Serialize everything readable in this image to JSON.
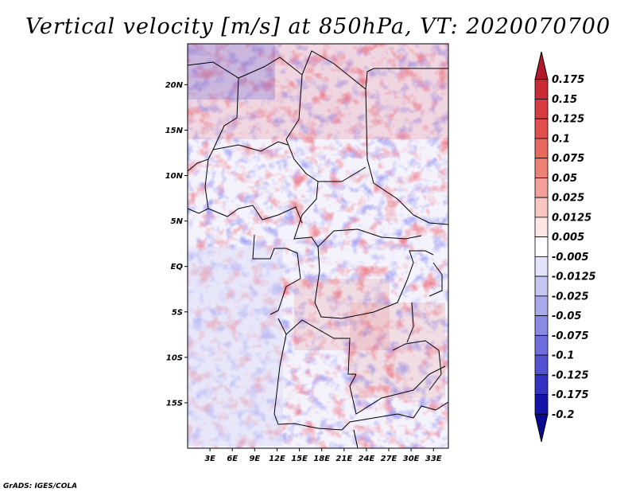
{
  "map": {
    "title": "Vertical velocity [m/s] at 850hPa, VT: 2020070700",
    "lon_labels": [
      "3E",
      "6E",
      "9E",
      "12E",
      "15E",
      "18E",
      "21E",
      "24E",
      "27E",
      "30E",
      "33E"
    ],
    "lon_values": [
      3,
      6,
      9,
      12,
      15,
      18,
      21,
      24,
      27,
      30,
      33
    ],
    "lat_labels": [
      "20N",
      "15N",
      "10N",
      "5N",
      "EQ",
      "5S",
      "10S",
      "15S"
    ],
    "lat_values": [
      20,
      15,
      10,
      5,
      0,
      -5,
      -10,
      -15
    ],
    "lon_range": [
      0,
      35
    ],
    "lat_range": [
      -20,
      24.5
    ],
    "credit": "GrADS: IGES/COLA"
  },
  "colorbar": {
    "labels": [
      "0.175",
      "0.15",
      "0.125",
      "0.1",
      "0.075",
      "0.05",
      "0.025",
      "0.0125",
      "0.005",
      "-0.005",
      "-0.0125",
      "-0.025",
      "-0.05",
      "-0.075",
      "-0.1",
      "-0.125",
      "-0.175",
      "-0.2"
    ],
    "colors": [
      "#b2182b",
      "#c92a33",
      "#d83c40",
      "#e34f4f",
      "#e8675f",
      "#ee8076",
      "#f3a09a",
      "#f9c6c2",
      "#fde6e4",
      "#ffffff",
      "#e3e3fb",
      "#c6c6f3",
      "#a8a8ec",
      "#8a8ae4",
      "#6d6dde",
      "#5252d3",
      "#3333c3",
      "#1414a8",
      "#0a0a8e"
    ]
  }
}
